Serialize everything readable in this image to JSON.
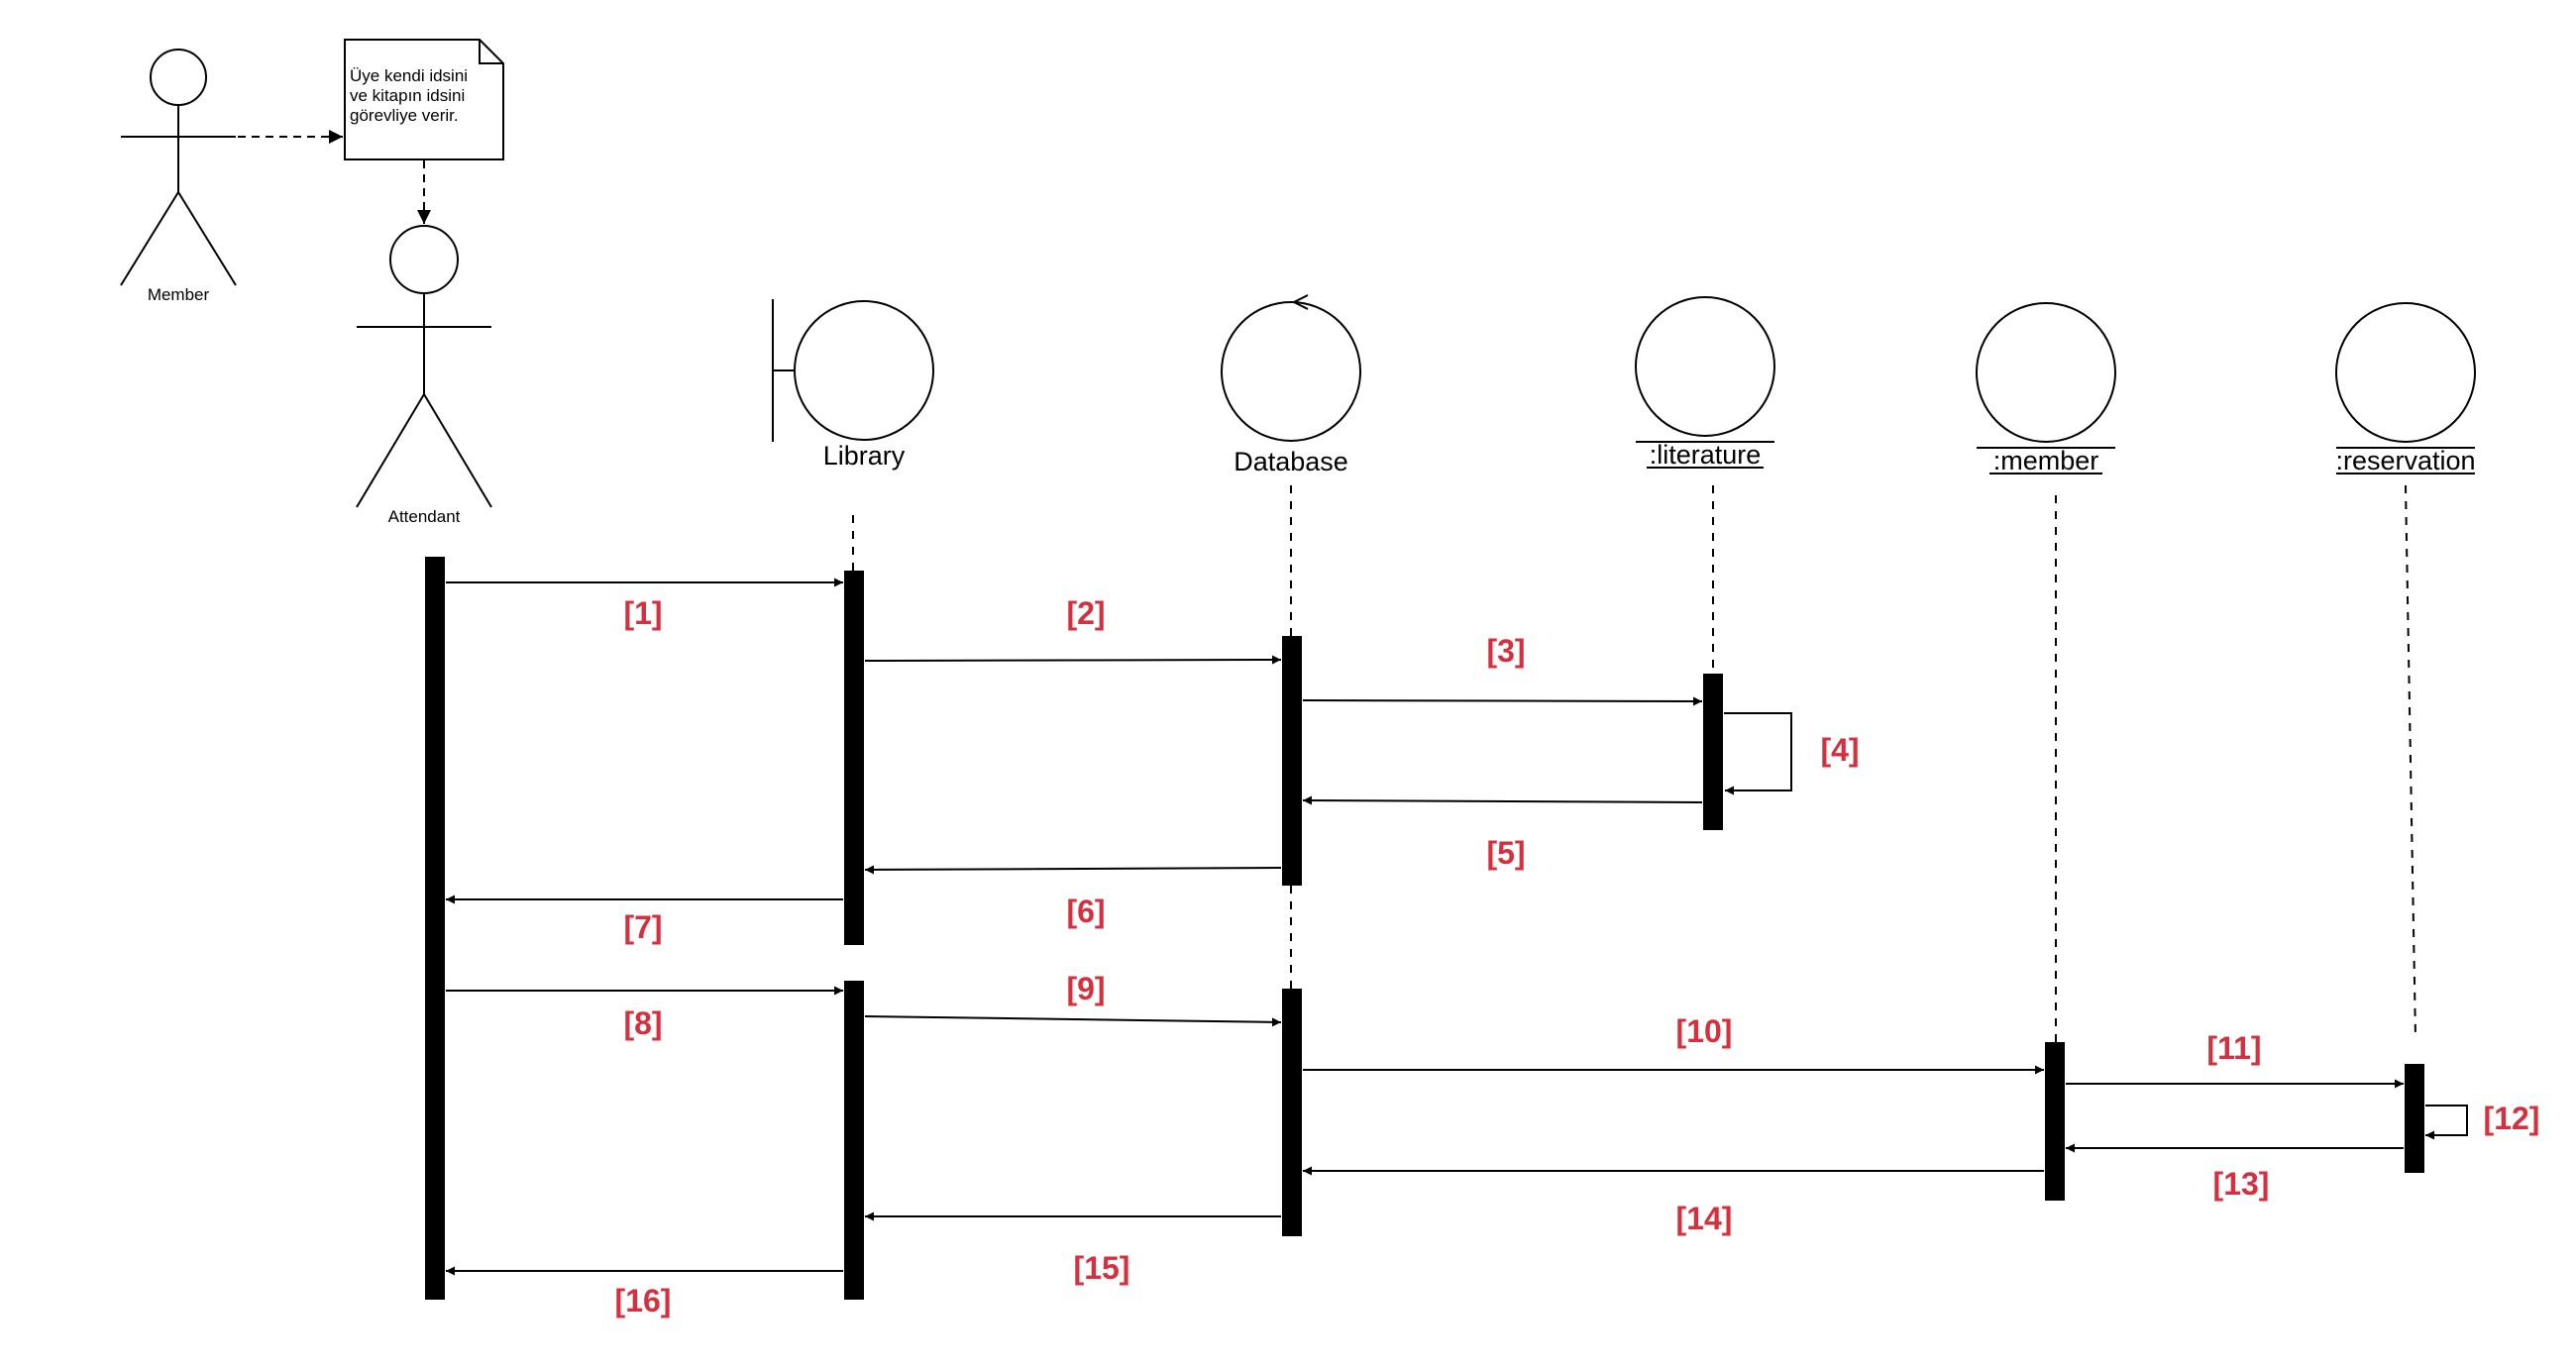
{
  "note": {
    "lines": [
      "Üye kendi idsini",
      "ve kitapın idsini",
      "görevliye verir."
    ]
  },
  "actors": {
    "member": "Member",
    "attendant": "Attendant"
  },
  "objects": {
    "library": "Library",
    "database": "Database",
    "literature": ":literature",
    "member": ":member",
    "reservation": ":reservation"
  },
  "messages": [
    "[1]",
    "[2]",
    "[3]",
    "[4]",
    "[5]",
    "[6]",
    "[7]",
    "[8]",
    "[9]",
    "[10]",
    "[11]",
    "[12]",
    "[13]",
    "[14]",
    "[15]",
    "[16]"
  ],
  "colors": {
    "label": "#d62f3d",
    "line": "#000000",
    "activation": "#000000"
  }
}
